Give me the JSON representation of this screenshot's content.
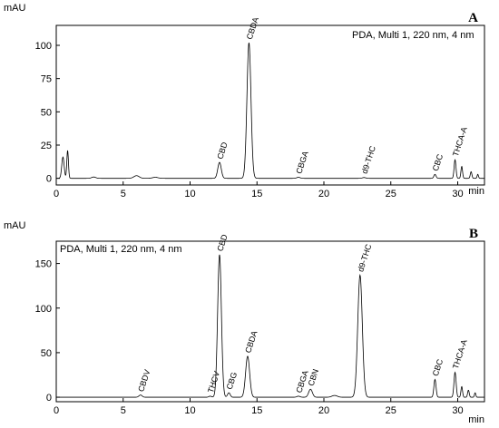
{
  "chart_data": [
    {
      "type": "line",
      "panel_letter": "A",
      "method_label": "PDA, Multi 1, 220 nm, 4 nm",
      "ylabel": "mAU",
      "xlabel": "min",
      "xlim": [
        0,
        32
      ],
      "ylim": [
        -5,
        115
      ],
      "x_ticks": [
        0,
        5,
        10,
        15,
        20,
        25,
        30
      ],
      "y_ticks": [
        0,
        25,
        50,
        75,
        100
      ],
      "grid": false,
      "peaks": [
        {
          "x": 0.5,
          "y": 16,
          "w": 0.09
        },
        {
          "x": 0.85,
          "y": 21,
          "w": 0.06
        },
        {
          "x": 2.8,
          "y": 1,
          "w": 0.15
        },
        {
          "x": 6.0,
          "y": 2,
          "w": 0.2
        },
        {
          "x": 7.4,
          "y": 0.8,
          "w": 0.2
        },
        {
          "x": 12.2,
          "y": 12,
          "w": 0.13
        },
        {
          "x": 14.4,
          "y": 102,
          "w": 0.15
        },
        {
          "x": 18.1,
          "y": 0.8,
          "w": 0.12
        },
        {
          "x": 23.0,
          "y": 0.6,
          "w": 0.12
        },
        {
          "x": 28.3,
          "y": 3,
          "w": 0.08
        },
        {
          "x": 29.8,
          "y": 14,
          "w": 0.07
        },
        {
          "x": 30.3,
          "y": 9,
          "w": 0.06
        },
        {
          "x": 31.0,
          "y": 5,
          "w": 0.06
        },
        {
          "x": 31.5,
          "y": 3,
          "w": 0.05
        }
      ],
      "peak_labels": [
        {
          "label": "CBD",
          "x": 12.2,
          "y": 12
        },
        {
          "label": "CBDA",
          "x": 14.4,
          "y": 102
        },
        {
          "label": "CBGA",
          "x": 18.1,
          "y": 1
        },
        {
          "label": "d9-THC",
          "x": 23.0,
          "y": 1
        },
        {
          "label": "CBC",
          "x": 28.3,
          "y": 3
        },
        {
          "label": "THCA-A",
          "x": 29.8,
          "y": 14
        }
      ]
    },
    {
      "type": "line",
      "panel_letter": "B",
      "method_label": "PDA, Multi 1, 220 nm, 4 nm",
      "ylabel": "mAU",
      "xlabel": "min",
      "xlim": [
        0,
        32
      ],
      "ylim": [
        -5,
        175
      ],
      "x_ticks": [
        0,
        5,
        10,
        15,
        20,
        25,
        30
      ],
      "y_ticks": [
        0,
        50,
        100,
        150
      ],
      "grid": false,
      "peaks": [
        {
          "x": 6.3,
          "y": 2.5,
          "w": 0.12
        },
        {
          "x": 11.5,
          "y": 1.2,
          "w": 0.1
        },
        {
          "x": 12.2,
          "y": 160,
          "w": 0.14
        },
        {
          "x": 12.9,
          "y": 5,
          "w": 0.1
        },
        {
          "x": 14.3,
          "y": 46,
          "w": 0.15
        },
        {
          "x": 18.1,
          "y": 1.2,
          "w": 0.12
        },
        {
          "x": 19.0,
          "y": 9,
          "w": 0.14
        },
        {
          "x": 20.8,
          "y": 2,
          "w": 0.2
        },
        {
          "x": 22.7,
          "y": 137,
          "w": 0.17
        },
        {
          "x": 28.3,
          "y": 20,
          "w": 0.08
        },
        {
          "x": 29.8,
          "y": 28,
          "w": 0.08
        },
        {
          "x": 30.3,
          "y": 12,
          "w": 0.06
        },
        {
          "x": 30.8,
          "y": 8,
          "w": 0.06
        },
        {
          "x": 31.3,
          "y": 5,
          "w": 0.05
        }
      ],
      "peak_labels": [
        {
          "label": "CBDV",
          "x": 6.3,
          "y": 2.5
        },
        {
          "label": "THCV",
          "x": 11.5,
          "y": 1.2
        },
        {
          "label": "CBD",
          "x": 12.2,
          "y": 160
        },
        {
          "label": "CBG",
          "x": 12.9,
          "y": 5
        },
        {
          "label": "CBDA",
          "x": 14.3,
          "y": 46
        },
        {
          "label": "CBGA",
          "x": 18.1,
          "y": 1.2
        },
        {
          "label": "CBN",
          "x": 19.0,
          "y": 9
        },
        {
          "label": "d9-THC",
          "x": 22.7,
          "y": 137
        },
        {
          "label": "CBC",
          "x": 28.3,
          "y": 20
        },
        {
          "label": "THCA-A",
          "x": 29.8,
          "y": 28
        }
      ]
    }
  ]
}
